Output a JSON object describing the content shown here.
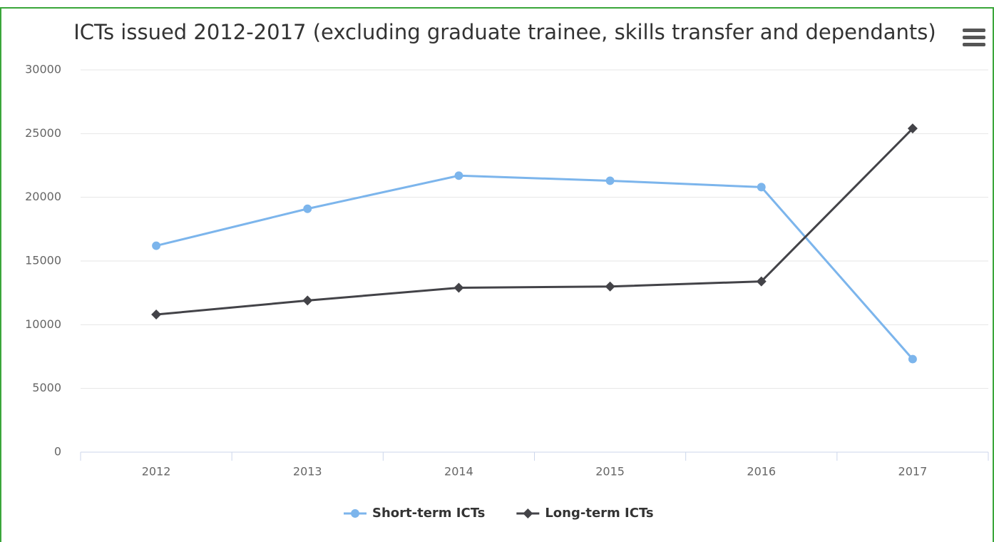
{
  "chart_data": {
    "type": "line",
    "title": "ICTs issued 2012-2017 (excluding graduate trainee, skills transfer and dependants)",
    "categories": [
      "2012",
      "2013",
      "2014",
      "2015",
      "2016",
      "2017"
    ],
    "series": [
      {
        "name": "Short-term ICTs",
        "color": "#7cb5ec",
        "marker": "circle",
        "values": [
          16200,
          19100,
          21700,
          21300,
          20800,
          7300
        ]
      },
      {
        "name": "Long-term ICTs",
        "color": "#434348",
        "marker": "diamond",
        "values": [
          10800,
          11900,
          12900,
          13000,
          13400,
          25400
        ]
      }
    ],
    "ylim": [
      0,
      30000
    ],
    "yticks": [
      0,
      5000,
      10000,
      15000,
      20000,
      25000,
      30000
    ],
    "grid": true,
    "legend": "bottom"
  }
}
